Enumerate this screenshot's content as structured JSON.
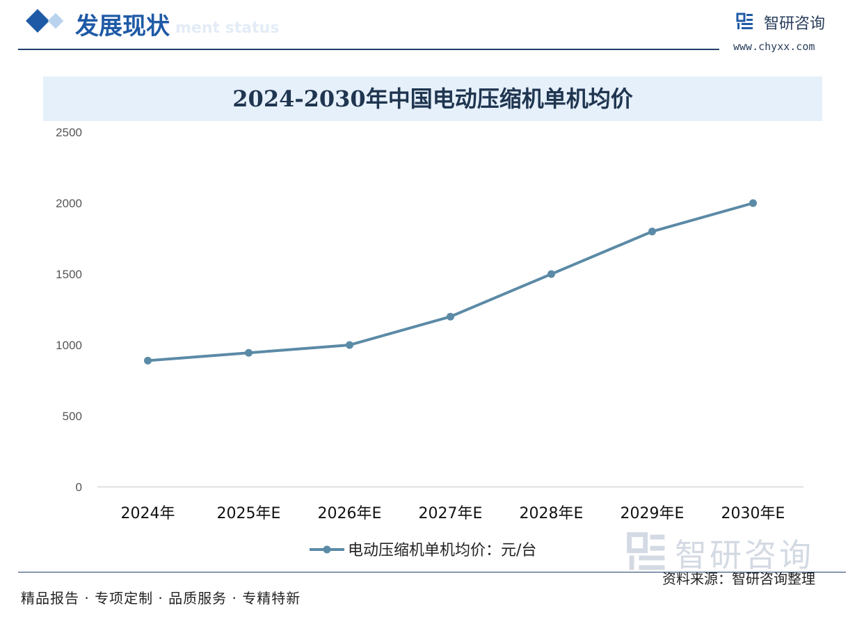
{
  "header": {
    "section_title": "发展现状",
    "ghost_text": "ment status",
    "brand_name": "智研咨询",
    "brand_url": "www.chyxx.com"
  },
  "footer": {
    "tagline": "精品报告 · 专项定制 · 品质服务 · 专精特新",
    "source": "资料来源：智研咨询整理",
    "watermark": "智研咨询"
  },
  "colors": {
    "accent": "#1f5aa6",
    "line": "#5b8aa6",
    "title_band": "#e6f0fa"
  },
  "chart_data": {
    "type": "line",
    "title": "2024-2030年中国电动压缩机单机均价",
    "categories": [
      "2024年",
      "2025年E",
      "2026年E",
      "2027年E",
      "2028年E",
      "2029年E",
      "2030年E"
    ],
    "series": [
      {
        "name": "电动压缩机单机均价：元/台",
        "values": [
          890,
          945,
          1000,
          1200,
          1500,
          1800,
          2000
        ]
      }
    ],
    "ylim": [
      0,
      2500
    ],
    "yticks": [
      0,
      500,
      1000,
      1500,
      2000,
      2500
    ],
    "grid": false,
    "legend": "bottom-center"
  }
}
